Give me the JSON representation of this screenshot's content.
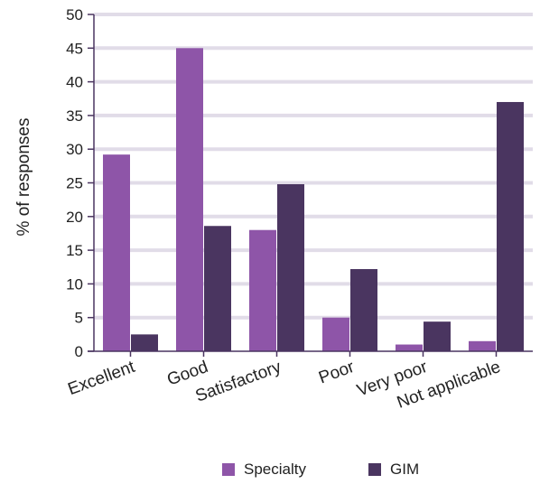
{
  "chart_data": {
    "type": "bar",
    "title": "",
    "xlabel": "",
    "ylabel": "% of responses",
    "ylim": [
      0,
      50
    ],
    "yticks": [
      0,
      5,
      10,
      15,
      20,
      25,
      30,
      35,
      40,
      45,
      50
    ],
    "grid": true,
    "legend_position": "bottom",
    "categories": [
      "Excellent",
      "Good",
      "Satisfactory",
      "Poor",
      "Very poor",
      "Not applicable"
    ],
    "series": [
      {
        "name": "Specialty",
        "color": "#8e55a8",
        "values": [
          29.2,
          45.0,
          18.0,
          5.0,
          1.0,
          1.5
        ]
      },
      {
        "name": "GIM",
        "color": "#4a3560",
        "values": [
          2.5,
          18.6,
          24.8,
          12.2,
          4.4,
          37.0
        ]
      }
    ],
    "grid_color": "#e1dce8"
  }
}
